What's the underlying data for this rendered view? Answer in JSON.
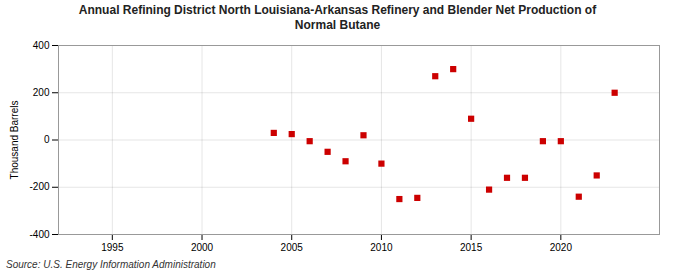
{
  "chart_data": {
    "type": "scatter",
    "title": "Annual Refining District North Louisiana-Arkansas Refinery and Blender Net Production of\nNormal Butane",
    "ylabel": "Thousand Barrels",
    "source": "Source: U.S. Energy Information Administration",
    "x": [
      2004,
      2005,
      2006,
      2007,
      2008,
      2009,
      2010,
      2011,
      2012,
      2013,
      2014,
      2015,
      2016,
      2017,
      2018,
      2019,
      2020,
      2021,
      2022,
      2023
    ],
    "values": [
      30,
      25,
      -5,
      -50,
      -90,
      20,
      -100,
      -250,
      -245,
      270,
      300,
      90,
      -210,
      -160,
      -160,
      -5,
      -5,
      -240,
      -150,
      200
    ],
    "color": "#cc0000",
    "marker": "square",
    "xlim": [
      1992,
      2025.5
    ],
    "ylim": [
      -400,
      400
    ],
    "xticks": [
      1995,
      2000,
      2005,
      2010,
      2015,
      2020
    ],
    "yticks": [
      -400,
      -200,
      0,
      200,
      400
    ],
    "grid": true
  }
}
